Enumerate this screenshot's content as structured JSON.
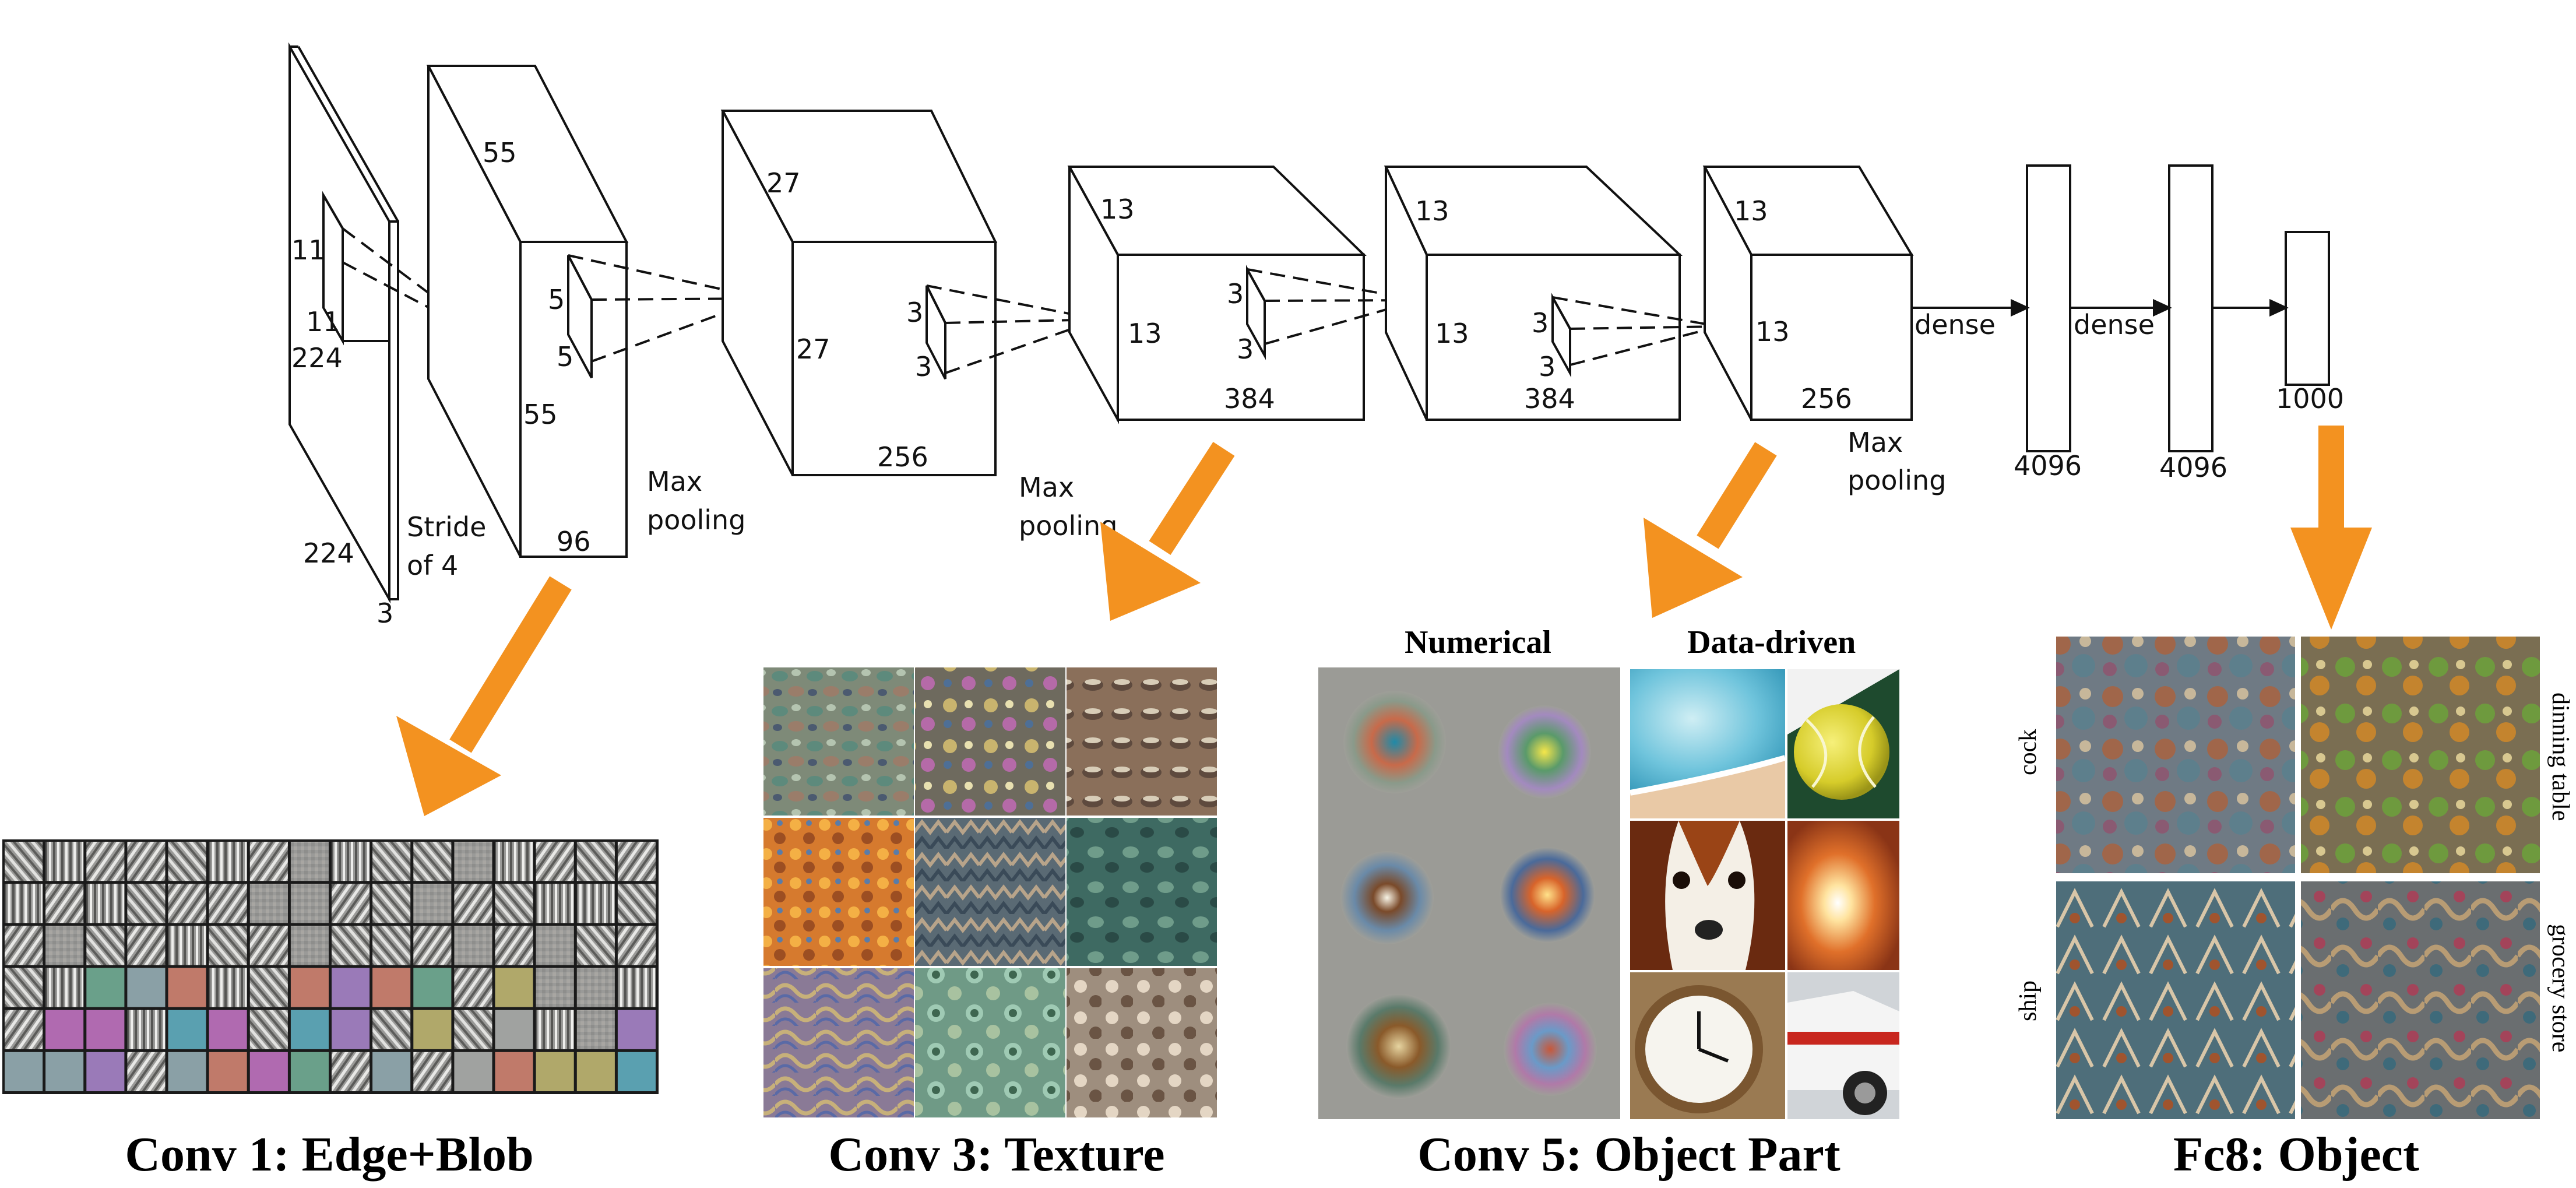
{
  "layers": {
    "input": {
      "h": "224",
      "w": "224",
      "d": "3",
      "k1": "11",
      "k2": "11"
    },
    "conv1": {
      "a": "55",
      "b": "55",
      "c": "96",
      "k1": "5",
      "k2": "5",
      "stride": [
        "Stride",
        "of 4"
      ]
    },
    "conv2": {
      "a": "27",
      "b": "27",
      "c": "256",
      "k1": "3",
      "k2": "3"
    },
    "conv3": {
      "a": "13",
      "b": "13",
      "c": "384",
      "k1": "3",
      "k2": "3"
    },
    "conv4": {
      "a": "13",
      "b": "13",
      "c": "384",
      "k1": "3",
      "k2": "3"
    },
    "conv5": {
      "a": "13",
      "b": "13",
      "c": "256"
    },
    "fc6": "4096",
    "fc7": "4096",
    "fc8": "1000",
    "pool1": [
      "Max",
      "pooling"
    ],
    "pool2": [
      "Max",
      "pooling"
    ],
    "pool3": [
      "Max",
      "pooling"
    ],
    "dense1": "dense",
    "dense2": "dense"
  },
  "panels": {
    "conv1_caption": "Conv 1: Edge+Blob",
    "conv3_caption": "Conv 3: Texture",
    "conv5_caption": "Conv 5: Object Part",
    "fc8_caption": "Fc8: Object",
    "numerical": "Numerical",
    "data_driven": "Data-driven",
    "classes": [
      "cock",
      "dinning table",
      "ship",
      "grocery store"
    ]
  },
  "colors": {
    "arrow": "#f39220",
    "line": "#111111"
  }
}
